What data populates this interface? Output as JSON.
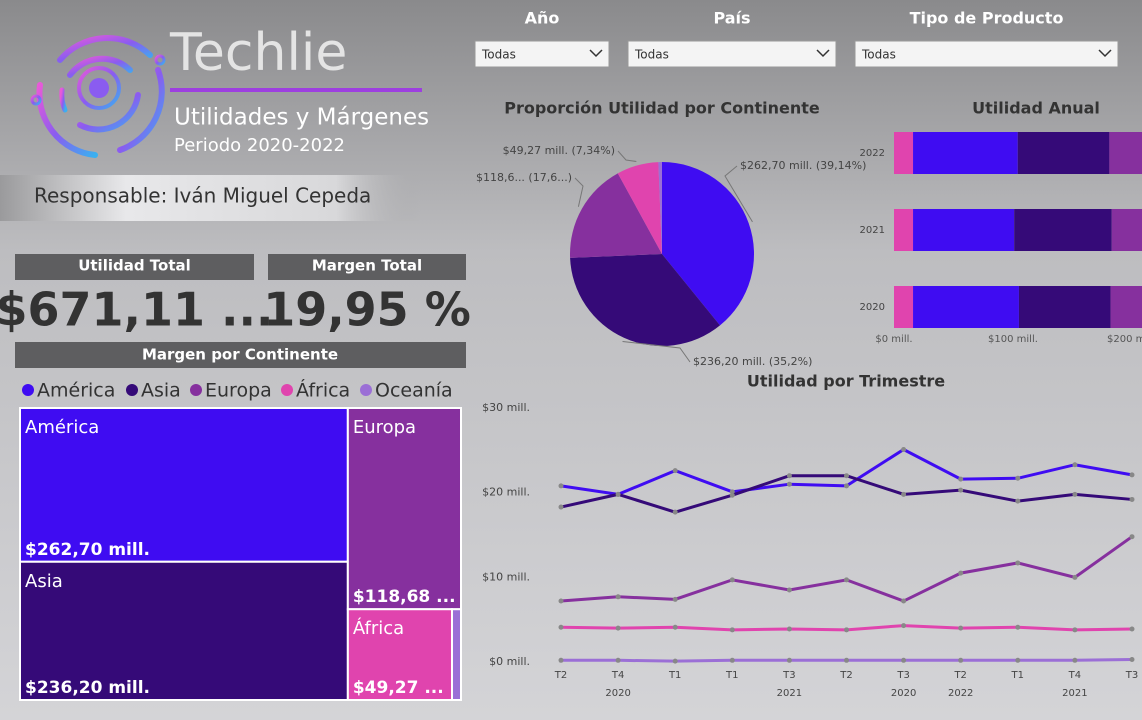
{
  "header": {
    "brand": "Techlie",
    "title": "Utilidades y Márgenes",
    "period": "Periodo 2020-2022",
    "responsible": "Responsable: Iván Miguel Cepeda"
  },
  "filters": [
    {
      "label": "Año",
      "value": "Todas"
    },
    {
      "label": "País",
      "value": "Todas"
    },
    {
      "label": "Tipo de Producto",
      "value": "Todas"
    }
  ],
  "kpis": [
    {
      "label": "Utilidad Total",
      "value": "$671,11 ..."
    },
    {
      "label": "Margen Total",
      "value": "19,95 %"
    }
  ],
  "chart_data": [
    {
      "type": "treemap",
      "title": "Margen por Continente",
      "categories": [
        "América",
        "Asia",
        "Europa",
        "África",
        "Oceanía"
      ],
      "values": [
        262.7,
        236.2,
        118.68,
        49.27,
        4.26
      ],
      "value_labels": [
        "$262,70 mill.",
        "$236,20 mill.",
        "$118,68 ...",
        "$49,27 ...",
        null
      ],
      "colors": [
        "#3f0cf2",
        "#350a78",
        "#86309e",
        "#e044ae",
        "#9b6fd6"
      ]
    },
    {
      "type": "pie",
      "title": "Proporción Utilidad por Continente",
      "values": [
        262.7,
        236.2,
        118.68,
        49.27,
        4.26
      ],
      "value_labels": [
        "$262,70 mill. (39,14%)",
        "$236,20 mill. (35,2%)",
        "$118,6... (17,6...)",
        "$49,27 mill. (7,34%)",
        null
      ],
      "colors": [
        "#3f0cf2",
        "#350a78",
        "#86309e",
        "#e044ae",
        "#9b6fd6"
      ]
    },
    {
      "type": "bar",
      "orientation": "horizontal",
      "stacked": true,
      "title": "Utilidad Anual",
      "categories": [
        "2022",
        "2021",
        "2020"
      ],
      "series": [
        {
          "color": "#e044ae",
          "values": [
            16,
            16,
            16
          ]
        },
        {
          "color": "#3f0cf2",
          "values": [
            88,
            85,
            89
          ]
        },
        {
          "color": "#350a78",
          "values": [
            77,
            82,
            77
          ]
        },
        {
          "color": "#86309e",
          "values": [
            40,
            40,
            39
          ]
        },
        {
          "color": "#9b6fd6",
          "values": [
            1.4,
            1.4,
            1.4
          ]
        }
      ],
      "xlim": [
        0,
        208
      ],
      "xticks": [
        {
          "value": 0,
          "label": "$0 mill."
        },
        {
          "value": 100,
          "label": "$100 mill."
        },
        {
          "value": 200,
          "label": "$200 mill."
        }
      ]
    },
    {
      "type": "line",
      "title": "Utilidad por Trimestre",
      "categories": [
        "T2",
        "T4",
        "T1",
        "T1",
        "T3",
        "T2",
        "T3",
        "T2",
        "T1",
        "T4",
        "T3"
      ],
      "year_labels": [
        null,
        "2020",
        null,
        null,
        "2021",
        null,
        "2020",
        "2022",
        null,
        "2021",
        null
      ],
      "series": [
        {
          "color": "#3f0cf2",
          "values": [
            20.8,
            19.8,
            22.6,
            20.1,
            21.0,
            20.8,
            25.1,
            21.6,
            21.7,
            23.3,
            22.1
          ]
        },
        {
          "color": "#350a78",
          "values": [
            18.3,
            19.8,
            17.7,
            19.7,
            22.0,
            22.0,
            19.8,
            20.3,
            19.0,
            19.8,
            19.2
          ]
        },
        {
          "color": "#86309e",
          "values": [
            7.2,
            7.7,
            7.4,
            9.7,
            8.5,
            9.7,
            7.2,
            10.5,
            11.7,
            10.0,
            14.8
          ]
        },
        {
          "color": "#e044ae",
          "values": [
            4.1,
            4.0,
            4.1,
            3.8,
            3.9,
            3.8,
            4.3,
            4.0,
            4.1,
            3.8,
            3.9
          ]
        },
        {
          "color": "#9b6fd6",
          "values": [
            0.2,
            0.2,
            0.1,
            0.2,
            0.2,
            0.2,
            0.2,
            0.2,
            0.2,
            0.2,
            0.3
          ]
        }
      ],
      "ylim": [
        0,
        30
      ],
      "yticks": [
        {
          "value": 0,
          "label": "$0 mill."
        },
        {
          "value": 10,
          "label": "$10 mill."
        },
        {
          "value": 20,
          "label": "$20 mill."
        },
        {
          "value": 30,
          "label": "$30 mill."
        }
      ]
    }
  ]
}
